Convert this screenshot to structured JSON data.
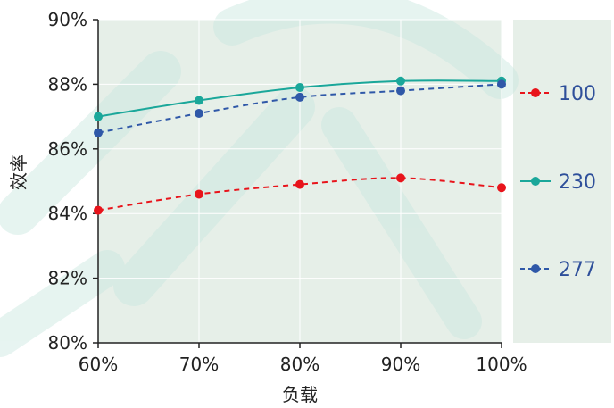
{
  "chart_data": {
    "type": "line",
    "categories": [
      "60%",
      "70%",
      "80%",
      "90%",
      "100%"
    ],
    "x": [
      60,
      70,
      80,
      90,
      100
    ],
    "xlabel": "负载",
    "ylabel": "效率",
    "ylim": [
      80,
      90
    ],
    "yticks": [
      80,
      82,
      84,
      86,
      88,
      90
    ],
    "ytick_labels": [
      "80%",
      "82%",
      "84%",
      "86%",
      "88%",
      "90%"
    ],
    "grid": true,
    "legend_position": "right",
    "series": [
      {
        "name": "100",
        "color": "#e8141b",
        "style": "dashed",
        "values": [
          84.1,
          84.6,
          84.9,
          85.1,
          84.8
        ]
      },
      {
        "name": "230",
        "color": "#1aa79a",
        "style": "solid",
        "values": [
          87.0,
          87.5,
          87.9,
          88.1,
          88.1
        ]
      },
      {
        "name": "277",
        "color": "#2f58a8",
        "style": "dashed",
        "values": [
          86.5,
          87.1,
          87.6,
          87.8,
          88.0
        ]
      }
    ]
  }
}
